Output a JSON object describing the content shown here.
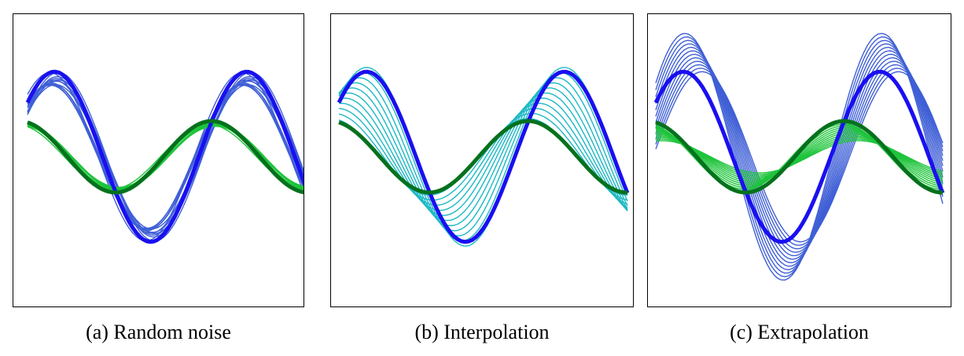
{
  "chart_data": [
    {
      "type": "line",
      "caption": "(a) Random noise",
      "xlim": [
        0,
        1
      ],
      "ylim": [
        -1.6,
        1.6
      ],
      "grid": false,
      "series": [
        {
          "group": "target",
          "color": "#1a0ff0",
          "bold": true,
          "amplitude": 1.0,
          "phase": 0.0,
          "count": 1
        },
        {
          "group": "target",
          "color": "#05711d",
          "bold": true,
          "amplitude": 0.42,
          "phase": 1.15,
          "count": 1
        },
        {
          "group": "samples",
          "color": "#3f5fd6",
          "bold": false,
          "amplitude": 0.95,
          "phase": 0.0,
          "count": 12,
          "spread": "random"
        },
        {
          "group": "samples",
          "color": "#1ec43b",
          "bold": false,
          "amplitude": 0.4,
          "phase": 1.15,
          "count": 12,
          "spread": "random"
        }
      ]
    },
    {
      "type": "line",
      "caption": "(b) Interpolation",
      "xlim": [
        0,
        1
      ],
      "ylim": [
        -1.6,
        1.6
      ],
      "grid": false,
      "series": [
        {
          "group": "target",
          "color": "#1a0ff0",
          "bold": true,
          "amplitude": 1.0,
          "phase": 0.0,
          "count": 1
        },
        {
          "group": "target",
          "color": "#05711d",
          "bold": true,
          "amplitude": 0.42,
          "phase": 1.15,
          "count": 1
        },
        {
          "group": "samples",
          "color": "#1cb8c4",
          "bold": false,
          "count": 11,
          "spread": "interpolate"
        }
      ]
    },
    {
      "type": "line",
      "caption": "(c) Extrapolation",
      "xlim": [
        0,
        1
      ],
      "ylim": [
        -1.6,
        1.6
      ],
      "grid": false,
      "series": [
        {
          "group": "target",
          "color": "#1a0ff0",
          "bold": true,
          "amplitude": 1.0,
          "phase": 0.0,
          "count": 1
        },
        {
          "group": "target",
          "color": "#05711d",
          "bold": true,
          "amplitude": 0.42,
          "phase": 1.15,
          "count": 1
        },
        {
          "group": "samples",
          "color": "#3f5fd6",
          "bold": false,
          "amplitude": 1.0,
          "phase": -0.6,
          "count": 12,
          "spread": "extrapolate"
        },
        {
          "group": "samples",
          "color": "#1ec43b",
          "bold": false,
          "amplitude": 0.42,
          "phase": -0.45,
          "count": 12,
          "spread": "extrapolate"
        }
      ]
    }
  ]
}
